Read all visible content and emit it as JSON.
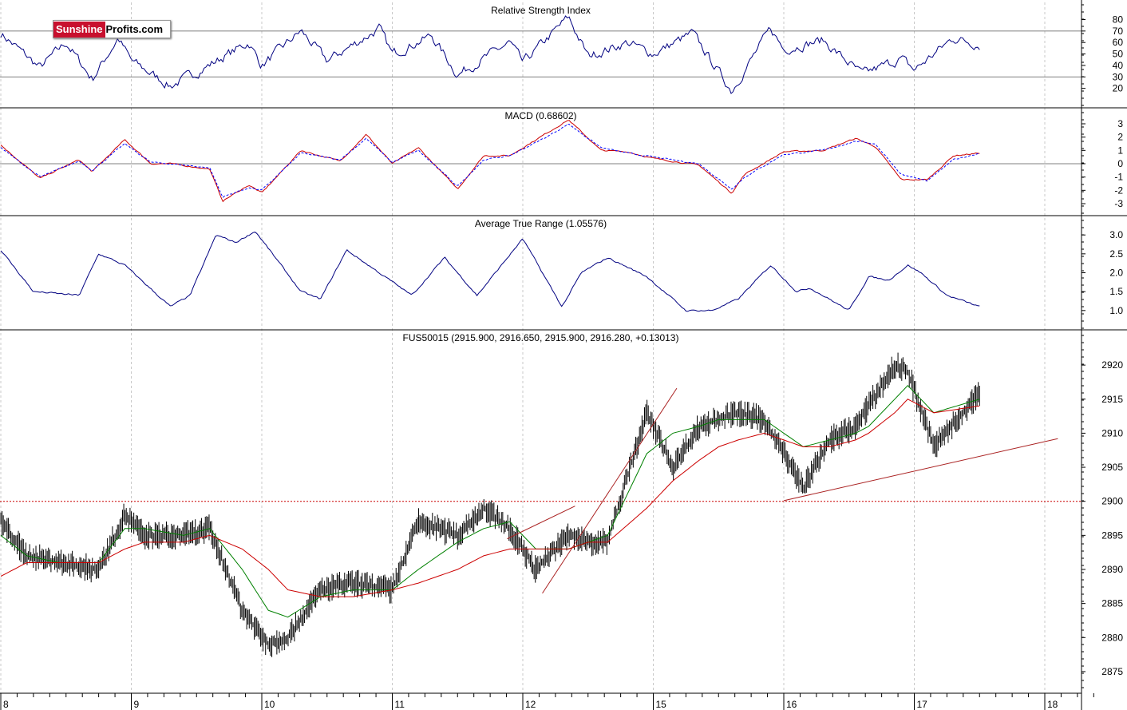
{
  "brand": {
    "part1": "Sunshine",
    "part2": "Profits.com"
  },
  "x_axis": {
    "labels": [
      "8",
      "9",
      "10",
      "11",
      "12",
      "15",
      "16",
      "17",
      "18"
    ]
  },
  "colors": {
    "price": "#000000",
    "ma_short": "#008000",
    "ma_long": "#cc0000",
    "indicator": "#000080",
    "signal": "#0000ff",
    "trend": "#aa2222",
    "support": "#cc0000",
    "grid": "#c8c8c8",
    "background": "#ffffff"
  },
  "chart_data": [
    {
      "type": "line",
      "title": "Relative Strength Index",
      "ylim": [
        10,
        88
      ],
      "yticks": [
        20,
        30,
        40,
        50,
        60,
        70,
        80
      ],
      "reference_lines": [
        30,
        70
      ],
      "x": [
        0,
        0.3,
        0.5,
        0.7,
        0.9,
        1,
        1.3,
        1.5,
        1.9,
        2,
        2.3,
        2.5,
        2.9,
        3,
        3.3,
        3.5,
        3.9,
        4,
        4.35,
        4.5,
        4.8,
        5,
        5.3,
        5.6,
        5.9,
        6,
        6.3,
        6.6,
        6.9,
        7,
        7.3,
        7.5
      ],
      "series": [
        {
          "values": [
            68,
            38,
            60,
            28,
            64,
            44,
            22,
            34,
            60,
            40,
            70,
            44,
            72,
            50,
            66,
            32,
            60,
            42,
            82,
            48,
            60,
            50,
            68,
            18,
            72,
            54,
            62,
            32,
            46,
            36,
            64,
            58
          ]
        }
      ]
    },
    {
      "type": "line",
      "title": "MACD (0.68602)",
      "ylim": [
        -3.3,
        3.6
      ],
      "yticks": [
        -3,
        -2,
        -1,
        0,
        1,
        2,
        3
      ],
      "reference_lines": [
        0
      ],
      "x": [
        0,
        0.3,
        0.6,
        0.7,
        0.95,
        1.15,
        1.3,
        1.6,
        1.7,
        1.9,
        2,
        2.3,
        2.6,
        2.8,
        3,
        3.2,
        3.5,
        3.7,
        3.9,
        4.2,
        4.35,
        4.6,
        4.8,
        5,
        5.35,
        5.6,
        5.7,
        6,
        6.3,
        6.55,
        6.7,
        6.9,
        7.1,
        7.3,
        7.5
      ],
      "series": [
        {
          "values": [
            1.4,
            -1.1,
            0.3,
            -0.6,
            1.8,
            0.0,
            0.0,
            -0.4,
            -2.8,
            -1.6,
            -2.2,
            1.0,
            0.2,
            2.2,
            0.0,
            1.2,
            -1.9,
            0.6,
            0.6,
            2.4,
            3.3,
            1.0,
            0.9,
            0.4,
            -0.1,
            -2.2,
            -0.8,
            0.9,
            1.0,
            1.9,
            1.3,
            -1.2,
            -1.2,
            0.6,
            0.8
          ]
        },
        {
          "values": [
            1.2,
            -1.0,
            0.2,
            -0.5,
            1.5,
            0.1,
            0.0,
            -0.3,
            -2.5,
            -1.8,
            -2.0,
            0.8,
            0.3,
            1.9,
            0.1,
            1.0,
            -1.7,
            0.3,
            0.6,
            2.1,
            3.0,
            1.2,
            0.8,
            0.5,
            0.0,
            -1.9,
            -1.0,
            0.7,
            1.0,
            1.7,
            1.5,
            -0.8,
            -1.3,
            0.3,
            0.8
          ]
        }
      ]
    },
    {
      "type": "line",
      "title": "Average True Range (1.05576)",
      "ylim": [
        0.7,
        3.3
      ],
      "yticks": [
        1.0,
        1.5,
        2.0,
        2.5,
        3.0
      ],
      "x": [
        0,
        0.25,
        0.6,
        0.75,
        0.95,
        1.3,
        1.45,
        1.65,
        1.8,
        1.95,
        2.3,
        2.45,
        2.65,
        2.9,
        3.15,
        3.4,
        3.65,
        4.0,
        4.3,
        4.45,
        4.65,
        4.95,
        5.25,
        5.45,
        5.65,
        5.9,
        6.1,
        6.2,
        6.5,
        6.65,
        6.8,
        6.95,
        7.05,
        7.25,
        7.5
      ],
      "series": [
        {
          "values": [
            2.6,
            1.5,
            1.4,
            2.5,
            2.2,
            1.1,
            1.4,
            3.0,
            2.8,
            3.1,
            1.5,
            1.3,
            2.6,
            2.0,
            1.4,
            2.4,
            1.4,
            2.9,
            1.1,
            2.0,
            2.4,
            1.9,
            1.0,
            1.0,
            1.3,
            2.2,
            1.5,
            1.6,
            1.0,
            1.9,
            1.8,
            2.2,
            2.0,
            1.4,
            1.1
          ]
        }
      ]
    },
    {
      "type": "line",
      "title": "FUS50015 (2915.900, 2916.650, 2915.900, 2916.280, +0.13013)",
      "ylim": [
        2873,
        2924
      ],
      "yticks": [
        2875,
        2880,
        2885,
        2890,
        2895,
        2900,
        2905,
        2910,
        2915,
        2920
      ],
      "x": [
        0,
        0.2,
        0.45,
        0.75,
        0.95,
        1.1,
        1.4,
        1.6,
        1.85,
        2.05,
        2.2,
        2.45,
        2.7,
        3.0,
        3.2,
        3.5,
        3.7,
        3.9,
        4.1,
        4.35,
        4.5,
        4.65,
        4.95,
        5.15,
        5.35,
        5.5,
        5.65,
        5.85,
        6.15,
        6.35,
        6.55,
        6.65,
        6.85,
        6.95,
        7.15,
        7.5
      ],
      "series": [
        {
          "name": "",
          "values": [
            2897,
            2892,
            2891,
            2890,
            2898,
            2895,
            2895,
            2896,
            2884,
            2879,
            2880,
            2887,
            2888,
            2887,
            2897,
            2895,
            2899,
            2896,
            2890,
            2895,
            2894,
            2894,
            2913,
            2905,
            2911,
            2912,
            2913,
            2912,
            2902,
            2909,
            2911,
            2914,
            2920,
            2919,
            2908,
            2916
          ]
        },
        {
          "name": "",
          "values": [
            2895,
            2892,
            2891,
            2891,
            2896,
            2896,
            2895,
            2896,
            2890,
            2884,
            2883,
            2886,
            2887,
            2887,
            2890,
            2894,
            2896,
            2897,
            2893,
            2893,
            2894,
            2895,
            2907,
            2910,
            2911,
            2912,
            2912,
            2912,
            2908,
            2909,
            2910,
            2911,
            2915,
            2917,
            2913,
            2915
          ]
        },
        {
          "name": "",
          "values": [
            2889,
            2891,
            2891,
            2891,
            2893,
            2894,
            2894,
            2895,
            2893,
            2890,
            2887,
            2886,
            2886,
            2887,
            2888,
            2890,
            2892,
            2893,
            2893,
            2893,
            2894,
            2894,
            2899,
            2903,
            2906,
            2908,
            2909,
            2910,
            2908,
            2908,
            2909,
            2910,
            2913,
            2915,
            2913,
            2914
          ]
        }
      ],
      "support_level": 2900,
      "trend_lines": [
        {
          "from": [
            6.0,
            2900.1
          ],
          "to": [
            8.1,
            2909.2
          ]
        },
        {
          "from": [
            3.88,
            2894.5
          ],
          "to": [
            4.4,
            2899.3
          ]
        },
        {
          "from": [
            4.15,
            2886.5
          ],
          "to": [
            5.18,
            2916.6
          ]
        }
      ]
    }
  ]
}
